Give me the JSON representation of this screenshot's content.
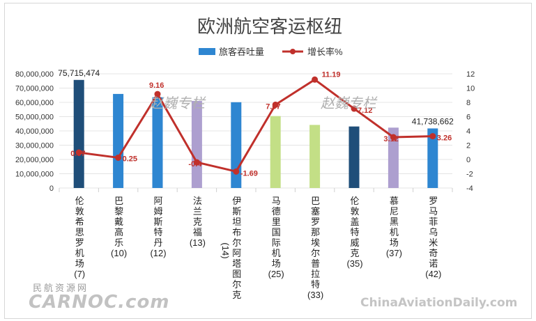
{
  "chart_data": {
    "type": "bar+line",
    "title": "欧洲航空客运枢纽",
    "legend": {
      "position": "top",
      "bar_label": "旅客吞吐量",
      "line_label": "增长率%"
    },
    "categories": [
      "伦敦希思罗机场(7)",
      "巴黎戴高乐(10)",
      "阿姆斯特丹(12)",
      "法兰克福(13)",
      "伊斯坦布尔阿塔图尔克(14)",
      "马德里国际机场(25)",
      "巴塞罗那埃尔普拉特(33)",
      "伦敦盖特威克(35)",
      "慕尼黑机场(37)",
      "罗马菲乌米奇诺(42)"
    ],
    "category_lines": [
      [
        "伦",
        "敦",
        "希",
        "思",
        "罗",
        "机",
        "场",
        "(7)"
      ],
      [
        "巴",
        "黎",
        "戴",
        "高",
        "乐",
        "(10)"
      ],
      [
        "阿",
        "姆",
        "斯",
        "特",
        "丹",
        "(12)"
      ],
      [
        "法",
        "兰",
        "克",
        "福",
        "(13)"
      ],
      [
        "伊",
        "斯",
        "坦",
        "布",
        "尔",
        "阿",
        "塔",
        "图",
        "尔",
        "克"
      ],
      [
        "马",
        "德",
        "里",
        "国",
        "际",
        "机",
        "场",
        "(25)"
      ],
      [
        "巴",
        "塞",
        "罗",
        "那",
        "埃",
        "尔",
        "普",
        "拉",
        "特",
        "(33)"
      ],
      [
        "伦",
        "敦",
        "盖",
        "特",
        "威",
        "克",
        "(35)"
      ],
      [
        "慕",
        "尼",
        "黑",
        "机",
        "场",
        "(37)"
      ],
      [
        "罗",
        "马",
        "菲",
        "乌",
        "米",
        "奇",
        "诺",
        "(42)"
      ]
    ],
    "extra_label": "(14)",
    "series": [
      {
        "name": "旅客吞吐量",
        "kind": "bar",
        "axis": "left",
        "values": [
          75715474,
          65900000,
          63600000,
          61000000,
          60100000,
          50400000,
          44200000,
          43100000,
          42300000,
          41738662
        ],
        "colors": [
          "#1f4e79",
          "#2e86d1",
          "#2e86d1",
          "#ad9fcf",
          "#2e86d1",
          "#c3df86",
          "#c3df86",
          "#1f4e79",
          "#ad9fcf",
          "#2e86d1"
        ],
        "value_labels": {
          "0": "75,715,474",
          "9": "41,738,662"
        }
      },
      {
        "name": "增长率%",
        "kind": "line",
        "axis": "right",
        "values": [
          0.97,
          0.25,
          9.16,
          -0.4,
          -1.69,
          7.67,
          11.19,
          7.12,
          3.12,
          3.26
        ],
        "labels": [
          "0.97",
          "0.25",
          "9.16",
          "-0.4",
          "-1.69",
          "7.67",
          "11.19",
          "7.12",
          "3.12",
          "3.26"
        ],
        "color": "#c0302b"
      }
    ],
    "y_left": {
      "range": [
        0,
        80000000
      ],
      "ticks": [
        "0",
        "10,000,000",
        "20,000,000",
        "30,000,000",
        "40,000,000",
        "50,000,000",
        "60,000,000",
        "70,000,000",
        "80,000,000"
      ]
    },
    "y_right": {
      "range": [
        -4,
        12
      ],
      "ticks": [
        "-4",
        "-2",
        "0",
        "2",
        "4",
        "6",
        "8",
        "10",
        "12"
      ]
    },
    "grid": true
  },
  "watermarks": {
    "left": "赵巍专栏",
    "right": "赵巍专栏"
  },
  "branding": {
    "cn": "民航资源网",
    "en": "CARNOC.com",
    "site": "ChinaAviationDaily.com"
  }
}
